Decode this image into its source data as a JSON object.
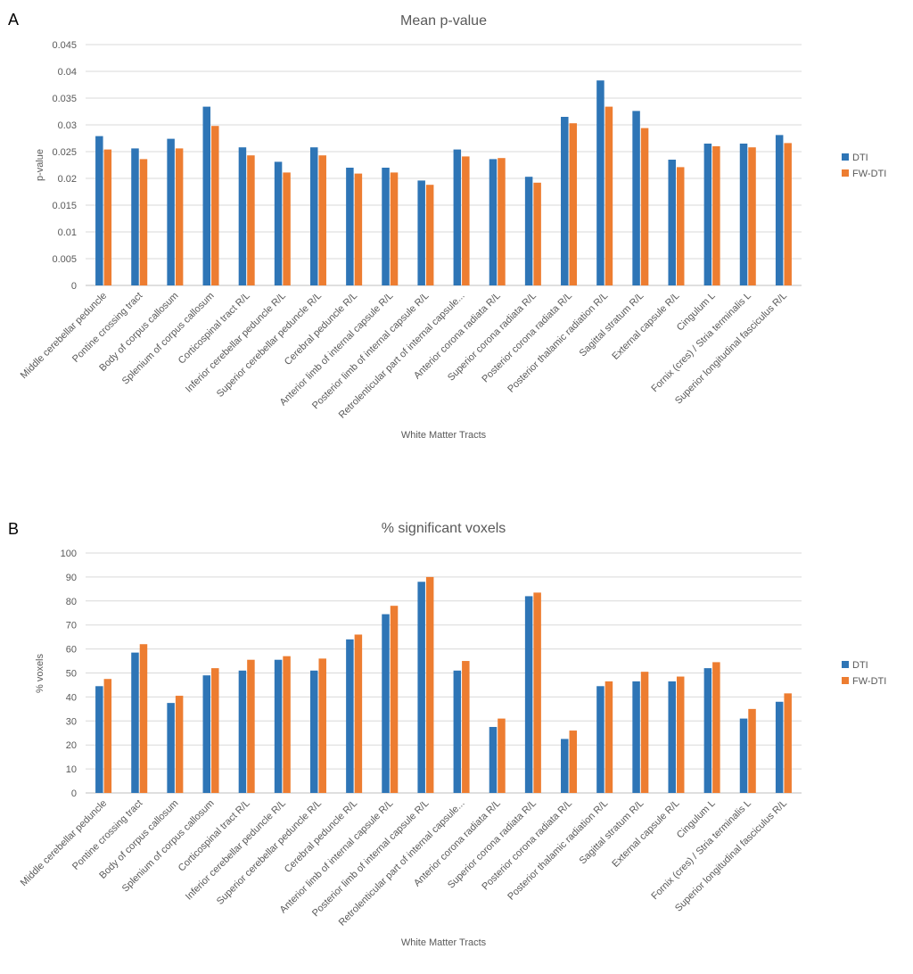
{
  "panels": {
    "a": "A",
    "b": "B"
  },
  "chart_data": [
    {
      "type": "bar",
      "title": "Mean p-value",
      "xlabel": "White Matter Tracts",
      "ylabel": "p-value",
      "ylim": [
        0,
        0.045
      ],
      "yticks": [
        "0",
        "0.005",
        "0.01",
        "0.015",
        "0.02",
        "0.025",
        "0.03",
        "0.035",
        "0.04",
        "0.045"
      ],
      "grid": true,
      "legend_position": "right",
      "categories": [
        "Middle cerebellar peduncle",
        "Pontine crossing tract",
        "Body of corpus callosum",
        "Splenium of corpus callosum",
        "Corticospinal tract R/L",
        "Inferior cerebellar peduncle R/L",
        "Superior cerebellar peduncle R/L",
        "Cerebral peduncle R/L",
        "Anterior limb of internal capsule R/L",
        "Posterior limb of internal capsule R/L",
        "Retrolenticular part of internal capsule...",
        "Anterior corona radiata R/L",
        "Superior corona radiata R/L",
        "Posterior corona radiata R/L",
        "Posterior thalamic radiation R/L",
        "Sagittal stratum R/L",
        "External capsule R/L",
        "Cingulum L",
        "Fornix (cres) / Stria terminalis L",
        "Superior longitudinal fasciculus R/L"
      ],
      "series": [
        {
          "name": "DTI",
          "color": "#2e75b6",
          "values": [
            0.0279,
            0.0256,
            0.0274,
            0.0334,
            0.0258,
            0.0231,
            0.0258,
            0.022,
            0.022,
            0.0196,
            0.0254,
            0.0236,
            0.0203,
            0.0315,
            0.0383,
            0.0326,
            0.0235,
            0.0265,
            0.0265,
            0.0281
          ]
        },
        {
          "name": "FW-DTI",
          "color": "#ed7d31",
          "values": [
            0.0254,
            0.0236,
            0.0256,
            0.0298,
            0.0243,
            0.0211,
            0.0243,
            0.0209,
            0.0211,
            0.0188,
            0.0241,
            0.0238,
            0.0192,
            0.0303,
            0.0334,
            0.0294,
            0.0221,
            0.026,
            0.0258,
            0.0266
          ]
        }
      ]
    },
    {
      "type": "bar",
      "title": "% significant voxels",
      "xlabel": "White Matter Tracts",
      "ylabel": "% voxels",
      "ylim": [
        0,
        100
      ],
      "yticks": [
        "0",
        "10",
        "20",
        "30",
        "40",
        "50",
        "60",
        "70",
        "80",
        "90",
        "100"
      ],
      "grid": true,
      "legend_position": "right",
      "categories": [
        "Middle cerebellar peduncle",
        "Pontine crossing tract",
        "Body of corpus callosum",
        "Splenium of corpus callosum",
        "Corticospinal tract R/L",
        "Inferior cerebellar peduncle R/L",
        "Superior cerebellar peduncle R/L",
        "Cerebral peduncle R/L",
        "Anterior limb of internal capsule R/L",
        "Posterior limb of internal capsule R/L",
        "Retrolenticular part of internal capsule...",
        "Anterior corona radiata R/L",
        "Superior corona radiata R/L",
        "Posterior corona radiata R/L",
        "Posterior thalamic radiation R/L",
        "Sagittal stratum R/L",
        "External capsule R/L",
        "Cingulum L",
        "Fornix (cres) / Stria terminalis L",
        "Superior longitudinal fasciculus R/L"
      ],
      "series": [
        {
          "name": "DTI",
          "color": "#2e75b6",
          "values": [
            44.5,
            58.5,
            37.5,
            49,
            51,
            55.5,
            51,
            64,
            74.5,
            88,
            51,
            27.5,
            82,
            22.5,
            44.5,
            46.5,
            46.5,
            52,
            31,
            38
          ]
        },
        {
          "name": "FW-DTI",
          "color": "#ed7d31",
          "values": [
            47.5,
            62,
            40.5,
            52,
            55.5,
            57,
            56,
            66,
            78,
            90,
            55,
            31,
            83.5,
            26,
            46.5,
            50.5,
            48.5,
            54.5,
            35,
            41.5
          ]
        }
      ]
    }
  ]
}
